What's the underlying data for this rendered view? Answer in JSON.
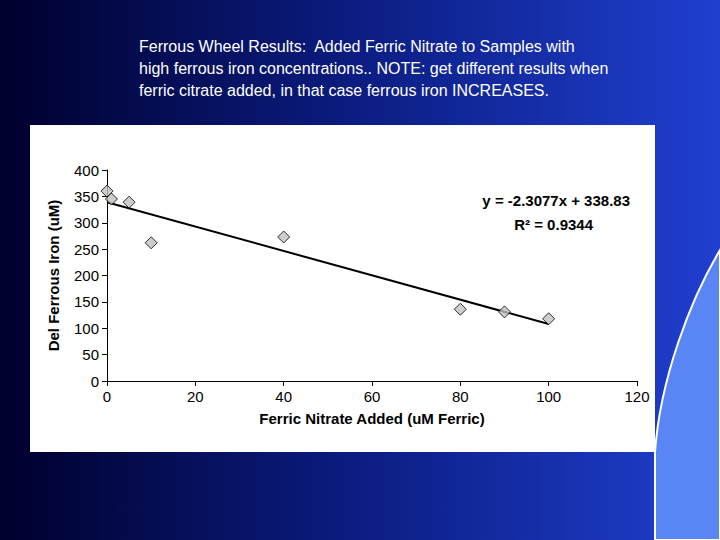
{
  "chart_data": {
    "type": "scatter",
    "title": "Ferrous Wheel Results:  Added Ferric Nitrate to Samples with high ferrous iron concentrations.. NOTE: get different results when ferric citrate added, in that case ferrous iron INCREASES.",
    "x_label": "Ferric Nitrate Added (uM Ferric)",
    "y_label": "Del Ferrous Iron (uM)",
    "series": [
      {
        "type": "scatter",
        "marker": "diamond",
        "color": "#c0c0c0",
        "x": [
          0,
          1,
          5,
          10,
          40,
          80,
          90,
          100
        ],
        "values": [
          360,
          345,
          339,
          262,
          273,
          136,
          131,
          118
        ]
      },
      {
        "type": "line",
        "color": "#000000",
        "line_style": "solid",
        "x": [
          0,
          100
        ],
        "values": [
          338.83,
          108.06
        ]
      }
    ],
    "annotations": [
      "y = -2.3077x + 338.83",
      "R² = 0.9344"
    ],
    "xlim": [
      0,
      120
    ],
    "xticks": [
      0,
      20,
      40,
      60,
      80,
      100,
      120
    ],
    "ylim": [
      0,
      400
    ],
    "yticks": [
      0,
      50,
      100,
      150,
      200,
      250,
      300,
      350,
      400
    ],
    "grid": false
  }
}
